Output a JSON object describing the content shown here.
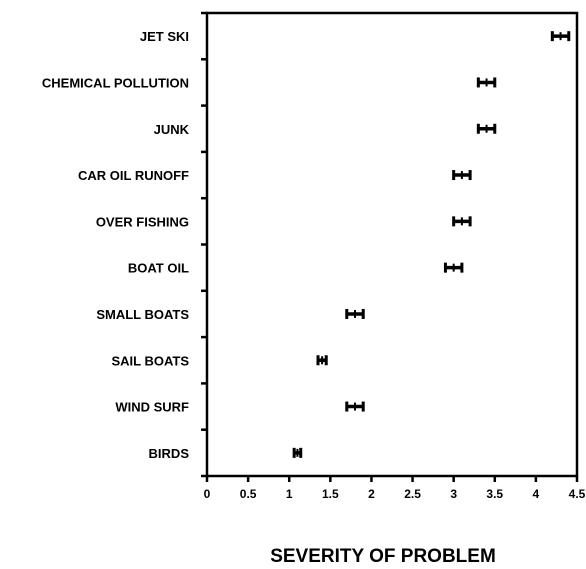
{
  "chart_data": {
    "type": "errorbar",
    "orientation": "horizontal",
    "title": "",
    "xlabel": "SEVERITY OF PROBLEM",
    "ylabel": "",
    "xlim": [
      0,
      4.5
    ],
    "xticks": [
      "0",
      "0.5",
      "1",
      "1.5",
      "2",
      "2.5",
      "3",
      "3.5",
      "4",
      "4.5"
    ],
    "grid": false,
    "legend": "none",
    "categories": [
      "JET SKI",
      "CHEMICAL POLLUTION",
      "JUNK",
      "CAR OIL RUNOFF",
      "OVER FISHING",
      "BOAT OIL",
      "SMALL BOATS",
      "SAIL BOATS",
      "WIND SURF",
      "BIRDS"
    ],
    "series": [
      {
        "means": [
          4.3,
          3.4,
          3.4,
          3.1,
          3.1,
          3.0,
          1.8,
          1.4,
          1.8,
          1.1
        ],
        "errors": [
          0.1,
          0.1,
          0.1,
          0.1,
          0.1,
          0.1,
          0.1,
          0.05,
          0.1,
          0.04
        ]
      }
    ],
    "color": "#000000"
  }
}
